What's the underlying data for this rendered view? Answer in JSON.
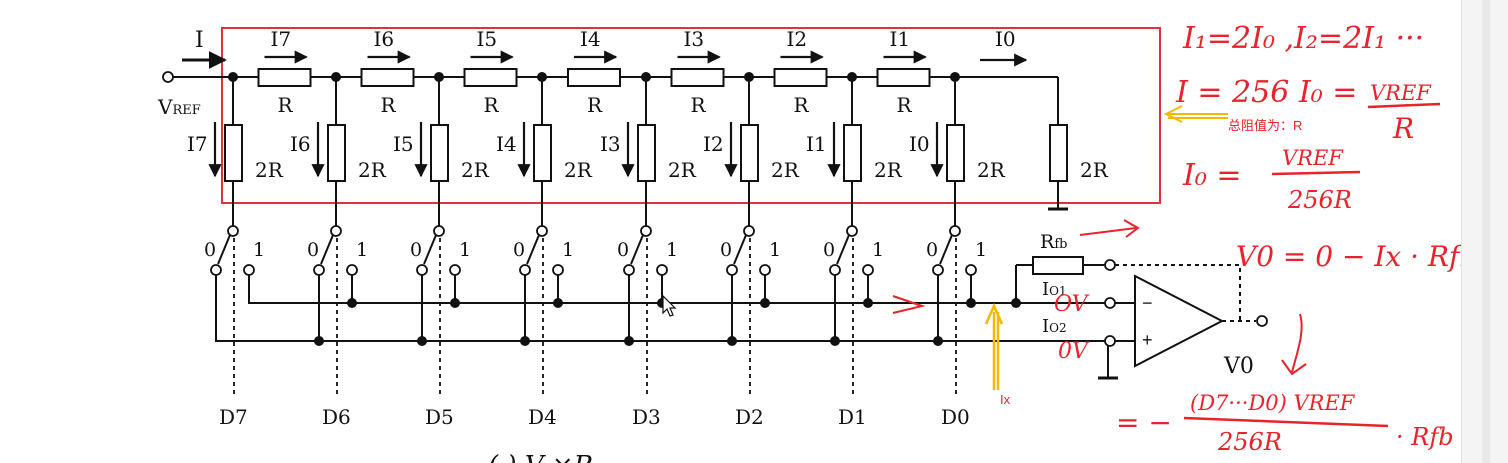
{
  "circuit": {
    "input_current": "I",
    "vref_main": "V",
    "vref_sub": "REF",
    "series_currents": [
      "I7",
      "I6",
      "I5",
      "I4",
      "I3",
      "I2",
      "I1",
      "I0"
    ],
    "series_resistor": "R",
    "leg_currents": [
      "I7",
      "I6",
      "I5",
      "I4",
      "I3",
      "I2",
      "I1",
      "I0"
    ],
    "leg_resistor": "2R",
    "term_resistor": "2R",
    "switch_zero": "0",
    "switch_one": "1",
    "bits": [
      "D7",
      "D6",
      "D5",
      "D4",
      "D3",
      "D2",
      "D1",
      "D0"
    ],
    "rfb_main": "R",
    "rfb_sub": "fb",
    "io1_main": "I",
    "io1_sub": "O1",
    "io2_main": "I",
    "io2_sub": "O2",
    "opamp_minus": "−",
    "opamp_plus": "+",
    "vo_label": "V0",
    "bottom_formula_fragment": "( ) V  ×R"
  },
  "annotations": {
    "eq_line1": "I₁=2I₀ ,I₂=2I₁ ···",
    "eq_line2_left": "I = 256 I₀ =",
    "eq_line2_num": "VREF",
    "eq_line2_den": "R",
    "total_resistance_note": "总阻值为：R",
    "eq_line3_left": "I₀ =",
    "eq_line3_num": "VREF",
    "eq_line3_den": "256R",
    "eq_line4": "V0 = 0 − Ix · Rfb",
    "eq_line5_lead": "= −",
    "eq_line5_num": "(D7···D0) VREF",
    "eq_line5_den": "256R",
    "eq_line5_tail": "· Rfb",
    "ov_note": "OV",
    "zero_v_note": "0V",
    "ix_label": "Ix"
  },
  "colors": {
    "ink": "#111111",
    "box": "#e0323a",
    "red_pen": "#e8232b",
    "yellow_pen": "#f5b800",
    "scrollbar": "#f4f4f4"
  }
}
